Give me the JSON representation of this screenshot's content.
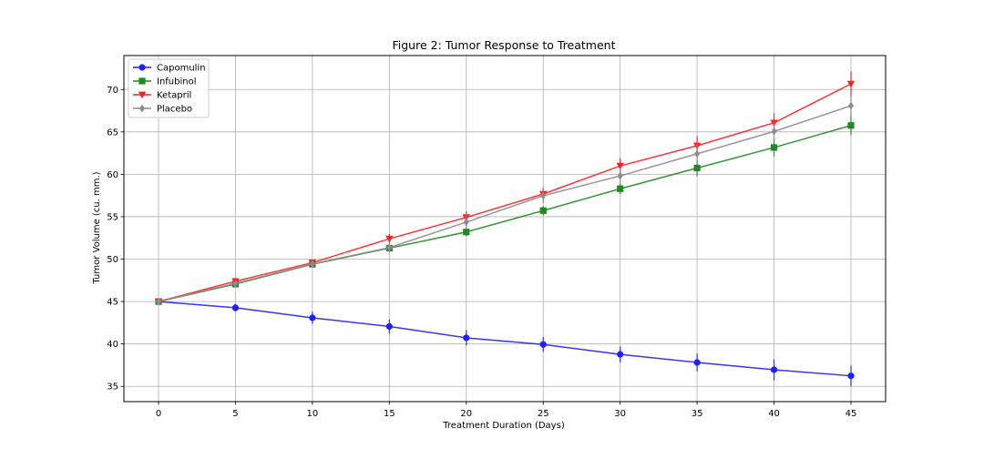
{
  "chart_data": {
    "type": "line",
    "title": "Figure 2: Tumor Response to Treatment",
    "xlabel": "Treatment Duration (Days)",
    "ylabel": "Tumor Volume (cu. mm.)",
    "xlim": [
      -2.25,
      47.25
    ],
    "ylim": [
      33.2,
      74.0
    ],
    "xticks": [
      0,
      5,
      10,
      15,
      20,
      25,
      30,
      35,
      40,
      45
    ],
    "yticks": [
      35,
      40,
      45,
      50,
      55,
      60,
      65,
      70
    ],
    "grid": true,
    "legend_position": "top-left",
    "x": [
      0,
      5,
      10,
      15,
      20,
      25,
      30,
      35,
      40,
      45
    ],
    "series": [
      {
        "name": "Capomulin",
        "color": "#1f1fff",
        "marker": "circle",
        "values": [
          45.0,
          44.27,
          43.08,
          42.06,
          40.72,
          39.94,
          38.77,
          37.82,
          36.96,
          36.24
        ],
        "errors": [
          0.0,
          0.45,
          0.7,
          0.84,
          0.91,
          0.88,
          0.93,
          1.05,
          1.22,
          1.22
        ]
      },
      {
        "name": "Infubinol",
        "color": "#1f8a1f",
        "marker": "square",
        "values": [
          45.0,
          47.06,
          49.4,
          51.3,
          53.2,
          55.72,
          58.3,
          60.74,
          63.16,
          65.76
        ],
        "errors": [
          0.0,
          0.24,
          0.28,
          0.36,
          0.48,
          0.55,
          0.63,
          0.98,
          1.06,
          1.14
        ]
      },
      {
        "name": "Ketapril",
        "color": "#ff1f1f",
        "marker": "triangle-down",
        "values": [
          45.0,
          47.39,
          49.58,
          52.4,
          54.92,
          57.68,
          60.99,
          63.37,
          66.07,
          70.66
        ],
        "errors": [
          0.0,
          0.26,
          0.36,
          0.58,
          0.73,
          0.76,
          0.93,
          1.13,
          1.16,
          1.45
        ]
      },
      {
        "name": "Placebo",
        "color": "#8c8c8c",
        "marker": "diamond",
        "values": [
          45.0,
          47.13,
          49.42,
          51.36,
          54.36,
          57.48,
          59.81,
          62.42,
          65.05,
          68.08
        ],
        "errors": [
          0.0,
          0.22,
          0.4,
          0.61,
          0.84,
          0.88,
          0.93,
          1.16,
          1.22,
          1.35
        ]
      }
    ]
  }
}
